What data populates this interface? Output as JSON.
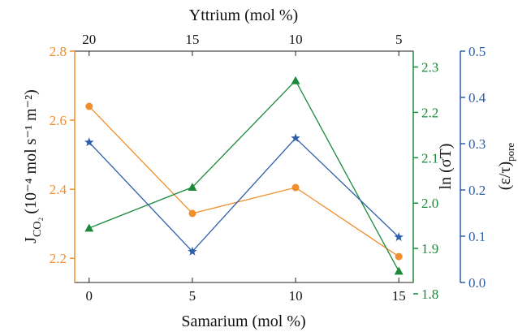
{
  "chart_data": {
    "type": "line",
    "top_axis": {
      "label": "Yttrium (mol %)",
      "ticks": [
        "20",
        "15",
        "10",
        "5"
      ]
    },
    "bottom_axis": {
      "label": "Samarium (mol %)",
      "ticks": [
        "0",
        "5",
        "10",
        "15"
      ]
    },
    "x": [
      0,
      5,
      10,
      15
    ],
    "xlim": [
      -0.7,
      15.7
    ],
    "axes": {
      "left": {
        "label_main": "J",
        "label_sub": "CO₂",
        "label_units": "(10⁻⁴ mol s⁻¹ m⁻²)",
        "ylim": [
          2.13,
          2.8
        ],
        "ticks": [
          2.2,
          2.4,
          2.6,
          2.8
        ],
        "tick_labels": [
          "2.2",
          "2.4",
          "2.6",
          "2.8"
        ],
        "color": "#f28e2b"
      },
      "right1": {
        "label": "ln (σT)",
        "ylim": [
          1.825,
          2.335
        ],
        "ticks": [
          1.8,
          1.9,
          2.0,
          2.1,
          2.2,
          2.3
        ],
        "tick_labels": [
          "1.8",
          "1.9",
          "2.0",
          "2.1",
          "2.2",
          "2.3"
        ],
        "color": "#1a8a3a"
      },
      "right2": {
        "label_main": "(ε/τ)",
        "label_sub": "pore",
        "ylim": [
          0.0,
          0.5
        ],
        "ticks": [
          0.0,
          0.1,
          0.2,
          0.3,
          0.4,
          0.5
        ],
        "tick_labels": [
          "0.0",
          "0.1",
          "0.2",
          "0.3",
          "0.4",
          "0.5"
        ],
        "color": "#2d5eaa"
      }
    },
    "series": [
      {
        "axis": "left",
        "marker": "circle",
        "color": "#f28e2b",
        "values": [
          2.64,
          2.33,
          2.405,
          2.205
        ]
      },
      {
        "axis": "right1",
        "marker": "triangle",
        "color": "#1a8a3a",
        "values": [
          1.945,
          2.035,
          2.27,
          1.85
        ]
      },
      {
        "axis": "right2",
        "marker": "star",
        "color": "#2d5eaa",
        "values": [
          0.303,
          0.067,
          0.312,
          0.098
        ]
      }
    ]
  }
}
